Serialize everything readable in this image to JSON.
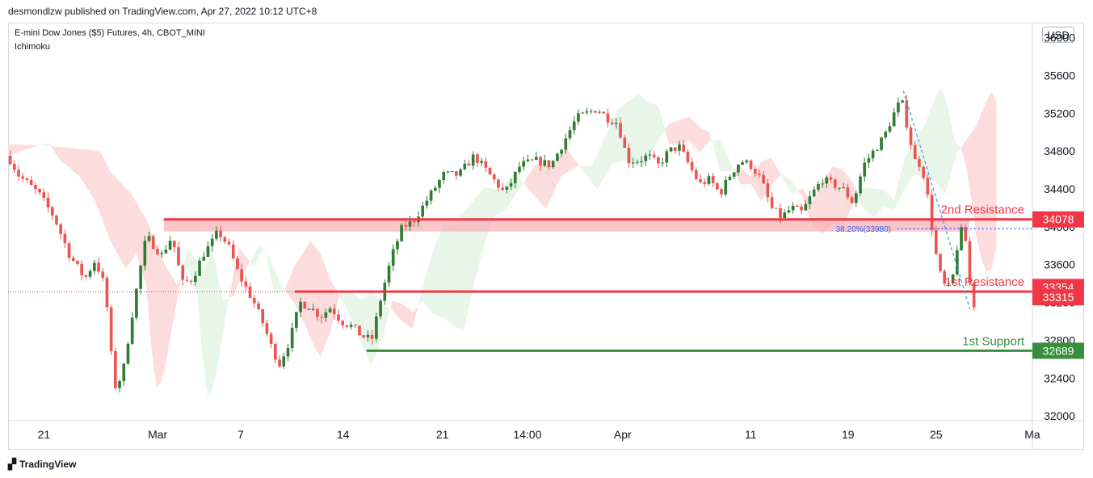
{
  "header": {
    "credit": "desmondlzw published on TradingView.com, Apr 27, 2022 10:12 UTC+8",
    "symbol": "E-mini Dow Jones ($5) Futures, 4h, CBOT_MINI",
    "indicator": "Ichimoku",
    "currency": "USD"
  },
  "footer": {
    "brand": "TradingView",
    "logo": "tradingview-logo-icon"
  },
  "colors": {
    "bull": "#26a69a",
    "bull_body": "#2e7d32",
    "bear": "#ef5350",
    "resistance": "#f23645",
    "support": "#388e3c",
    "fib": "#2962ff",
    "cloud_red": "#fcdcdc",
    "cloud_green": "#e8f5e9"
  },
  "chart_data": {
    "type": "candlestick",
    "ylim": [
      31950,
      36150
    ],
    "y_ticks": [
      "36000",
      "35600",
      "35200",
      "34800",
      "34400",
      "34000",
      "33600",
      "33200",
      "32800",
      "32400",
      "32000"
    ],
    "x_ticks": [
      "21",
      "Mar",
      "7",
      "14",
      "21",
      "14:00",
      "Apr",
      "11",
      "19",
      "25",
      "Ma"
    ],
    "levels": [
      {
        "label": "2nd Resistance",
        "value": 34078,
        "tag": "34078",
        "color": "#f23645"
      },
      {
        "label": "1st Resistance",
        "value": 33315,
        "tag": "33315",
        "color": "#f23645"
      },
      {
        "label": "1st Support",
        "value": 32689,
        "tag": "32689",
        "color": "#388e3c"
      }
    ],
    "current_price": {
      "value": 33354,
      "tag": "33354"
    },
    "fib": {
      "label": "38.20%(33980)",
      "value": 33980
    },
    "resistance_zone": [
      34030,
      34078
    ],
    "trend_line": {
      "from": [
        0.874,
        35440
      ],
      "to": [
        0.939,
        33130
      ]
    },
    "price_path": [
      [
        0.0,
        34750
      ],
      [
        0.01,
        34550
      ],
      [
        0.03,
        34350
      ],
      [
        0.045,
        34100
      ],
      [
        0.06,
        33700
      ],
      [
        0.075,
        33450
      ],
      [
        0.085,
        33650
      ],
      [
        0.095,
        33350
      ],
      [
        0.1,
        32700
      ],
      [
        0.105,
        32300
      ],
      [
        0.112,
        32450
      ],
      [
        0.12,
        33000
      ],
      [
        0.128,
        33500
      ],
      [
        0.135,
        33900
      ],
      [
        0.15,
        33700
      ],
      [
        0.16,
        33900
      ],
      [
        0.17,
        33400
      ],
      [
        0.18,
        33450
      ],
      [
        0.19,
        33700
      ],
      [
        0.2,
        33850
      ],
      [
        0.205,
        33950
      ],
      [
        0.215,
        33800
      ],
      [
        0.225,
        33500
      ],
      [
        0.24,
        33200
      ],
      [
        0.25,
        32950
      ],
      [
        0.258,
        32700
      ],
      [
        0.265,
        32550
      ],
      [
        0.275,
        32800
      ],
      [
        0.285,
        33200
      ],
      [
        0.295,
        33150
      ],
      [
        0.305,
        33050
      ],
      [
        0.315,
        33150
      ],
      [
        0.325,
        33000
      ],
      [
        0.335,
        32950
      ],
      [
        0.345,
        32850
      ],
      [
        0.355,
        32800
      ],
      [
        0.365,
        33300
      ],
      [
        0.375,
        33700
      ],
      [
        0.385,
        34000
      ],
      [
        0.395,
        34050
      ],
      [
        0.41,
        34300
      ],
      [
        0.425,
        34550
      ],
      [
        0.44,
        34550
      ],
      [
        0.455,
        34750
      ],
      [
        0.47,
        34550
      ],
      [
        0.485,
        34350
      ],
      [
        0.5,
        34650
      ],
      [
        0.515,
        34700
      ],
      [
        0.53,
        34650
      ],
      [
        0.545,
        34950
      ],
      [
        0.555,
        35150
      ],
      [
        0.565,
        35200
      ],
      [
        0.575,
        35250
      ],
      [
        0.585,
        35150
      ],
      [
        0.595,
        35100
      ],
      [
        0.605,
        34700
      ],
      [
        0.615,
        34700
      ],
      [
        0.625,
        34750
      ],
      [
        0.635,
        34650
      ],
      [
        0.645,
        34800
      ],
      [
        0.655,
        34850
      ],
      [
        0.665,
        34650
      ],
      [
        0.675,
        34450
      ],
      [
        0.685,
        34500
      ],
      [
        0.695,
        34350
      ],
      [
        0.705,
        34550
      ],
      [
        0.715,
        34700
      ],
      [
        0.725,
        34650
      ],
      [
        0.735,
        34500
      ],
      [
        0.745,
        34200
      ],
      [
        0.755,
        34100
      ],
      [
        0.765,
        34200
      ],
      [
        0.775,
        34150
      ],
      [
        0.785,
        34350
      ],
      [
        0.795,
        34500
      ],
      [
        0.805,
        34450
      ],
      [
        0.815,
        34400
      ],
      [
        0.825,
        34250
      ],
      [
        0.835,
        34650
      ],
      [
        0.845,
        34800
      ],
      [
        0.855,
        34950
      ],
      [
        0.865,
        35200
      ],
      [
        0.872,
        35350
      ],
      [
        0.878,
        35050
      ],
      [
        0.885,
        34700
      ],
      [
        0.892,
        34650
      ],
      [
        0.898,
        34300
      ],
      [
        0.905,
        33750
      ],
      [
        0.912,
        33400
      ],
      [
        0.918,
        33350
      ],
      [
        0.923,
        33500
      ],
      [
        0.928,
        33900
      ],
      [
        0.933,
        34000
      ],
      [
        0.937,
        33650
      ],
      [
        0.94,
        33250
      ],
      [
        0.944,
        33150
      ]
    ]
  }
}
